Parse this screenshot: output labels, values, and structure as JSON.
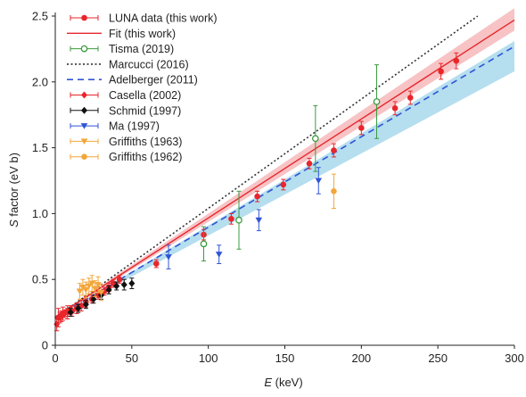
{
  "chart_data": {
    "type": "scatter",
    "xlabel_italic": "E",
    "xlabel_unit": " (keV)",
    "ylabel_italic": "S",
    "ylabel_rest": " factor (eV b)",
    "xlim": [
      0,
      300
    ],
    "ylim": [
      0,
      2.5
    ],
    "xticks": [
      0,
      50,
      100,
      150,
      200,
      250,
      300
    ],
    "yticks": [
      0,
      0.5,
      1.0,
      1.5,
      2.0,
      2.5
    ],
    "ytick_labels": [
      "0",
      "0.5",
      "1.0",
      "1.5",
      "2.0",
      "2.5"
    ],
    "grid": false,
    "legend_position": "top-left",
    "bands": [
      {
        "name": "adelberger-band",
        "color": "#a8d8ec",
        "x": [
          0,
          300
        ],
        "lower": [
          0.21,
          2.08
        ],
        "upper": [
          0.21,
          2.31
        ]
      },
      {
        "name": "fit-band",
        "color": "#f6b9bb",
        "x": [
          0,
          300
        ],
        "lower": [
          0.21,
          2.39
        ],
        "upper": [
          0.22,
          2.56
        ]
      }
    ],
    "series": [
      {
        "name": "LUNA data (this work)",
        "kind": "errorbar-point",
        "marker": "circle",
        "color": "#e8262b",
        "x": [
          2,
          5,
          8,
          11,
          14,
          17,
          20,
          24,
          28,
          32,
          35,
          38,
          42,
          66,
          97,
          115,
          132,
          149,
          166,
          182,
          200,
          222,
          232,
          252,
          262
        ],
        "y": [
          0.21,
          0.24,
          0.25,
          0.26,
          0.28,
          0.3,
          0.33,
          0.35,
          0.38,
          0.41,
          0.44,
          0.47,
          0.5,
          0.62,
          0.84,
          0.96,
          1.13,
          1.22,
          1.38,
          1.48,
          1.65,
          1.8,
          1.88,
          2.08,
          2.16
        ],
        "err": [
          0.07,
          0.05,
          0.05,
          0.04,
          0.04,
          0.04,
          0.04,
          0.03,
          0.03,
          0.03,
          0.03,
          0.03,
          0.03,
          0.03,
          0.04,
          0.04,
          0.04,
          0.04,
          0.04,
          0.05,
          0.05,
          0.05,
          0.05,
          0.06,
          0.06
        ]
      },
      {
        "name": "Fit (this work)",
        "kind": "line",
        "color": "#e8262b",
        "dash": "",
        "x": [
          0,
          300
        ],
        "y": [
          0.215,
          2.47
        ]
      },
      {
        "name": "Tisma (2019)",
        "kind": "errorbar-point",
        "marker": "open-circle",
        "color": "#3a9b3f",
        "x": [
          97,
          120,
          170,
          210
        ],
        "y": [
          0.77,
          0.95,
          1.57,
          1.85
        ],
        "err": [
          0.13,
          0.22,
          0.25,
          0.28
        ]
      },
      {
        "name": "Marcucci (2016)",
        "kind": "line",
        "color": "#333333",
        "dash": "2,2.5",
        "x": [
          0,
          276
        ],
        "y": [
          0.21,
          2.5
        ]
      },
      {
        "name": "Adelberger (2011)",
        "kind": "line",
        "color": "#2f54d6",
        "dash": "7,5",
        "x": [
          0,
          300
        ],
        "y": [
          0.21,
          2.27
        ]
      },
      {
        "name": "Casella (2002)",
        "kind": "errorbar-point",
        "marker": "diamond",
        "color": "#e8262b",
        "x": [
          1,
          3,
          4,
          6,
          8,
          10
        ],
        "y": [
          0.16,
          0.21,
          0.22,
          0.24,
          0.25,
          0.27
        ],
        "err": [
          0.05,
          0.04,
          0.04,
          0.03,
          0.03,
          0.03
        ]
      },
      {
        "name": "Schmid (1997)",
        "kind": "errorbar-point",
        "marker": "diamond",
        "color": "#111111",
        "x": [
          10,
          15,
          20,
          25,
          30,
          35,
          40,
          45,
          50
        ],
        "y": [
          0.25,
          0.28,
          0.31,
          0.35,
          0.38,
          0.42,
          0.45,
          0.46,
          0.47
        ],
        "err": [
          0.03,
          0.03,
          0.03,
          0.03,
          0.03,
          0.03,
          0.03,
          0.04,
          0.04
        ]
      },
      {
        "name": "Ma (1997)",
        "kind": "errorbar-point",
        "marker": "triangle-down",
        "color": "#2f54d6",
        "x": [
          74,
          107,
          133,
          172
        ],
        "y": [
          0.67,
          0.69,
          0.95,
          1.25
        ],
        "err": [
          0.09,
          0.07,
          0.08,
          0.1
        ]
      },
      {
        "name": "Griffiths (1963)",
        "kind": "errorbar-point",
        "marker": "triangle-down",
        "color": "#f3a63a",
        "x": [
          16,
          18,
          20,
          22,
          24,
          26,
          28,
          30
        ],
        "y": [
          0.41,
          0.44,
          0.42,
          0.45,
          0.47,
          0.43,
          0.46,
          0.4
        ],
        "err": [
          0.06,
          0.06,
          0.06,
          0.06,
          0.06,
          0.06,
          0.06,
          0.06
        ]
      },
      {
        "name": "Griffiths (1962)",
        "kind": "errorbar-point",
        "marker": "circle",
        "color": "#f3a63a",
        "x": [
          182
        ],
        "y": [
          1.17
        ],
        "err": [
          0.13
        ]
      }
    ]
  }
}
